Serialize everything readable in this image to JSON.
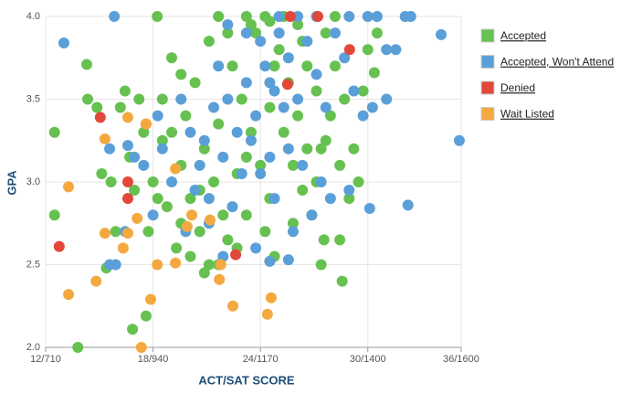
{
  "chart_data": {
    "type": "scatter",
    "x_label": "ACT/SAT SCORE",
    "y_label": "GPA",
    "xlim": [
      710,
      1600
    ],
    "xticks": [
      {
        "value": 710,
        "label": "12/710"
      },
      {
        "value": 940,
        "label": "18/940"
      },
      {
        "value": 1170,
        "label": "24/1170"
      },
      {
        "value": 1400,
        "label": "30/1400"
      },
      {
        "value": 1600,
        "label": "36/1600"
      }
    ],
    "ylim": [
      2,
      4
    ],
    "yticks": [
      {
        "value": 2,
        "label": "2.0"
      },
      2.5,
      {
        "value": 3,
        "label": "3.0"
      },
      3.5,
      {
        "value": 4,
        "label": "4.0"
      }
    ],
    "grid": true,
    "legend": "right",
    "series": [
      {
        "name": "Accepted",
        "color": "#66c150",
        "x": [
          960,
          980,
          1000,
          1020,
          1040,
          1060,
          990,
          1010,
          1030,
          1050,
          1070,
          1090,
          1110,
          1130,
          1150,
          1170,
          1190,
          1210,
          1230,
          1250,
          1270,
          1290,
          1310,
          1330,
          1350,
          1120,
          1140,
          1160,
          1180,
          1200,
          1220,
          1240,
          1260,
          1280,
          1300,
          1320,
          1340,
          1360,
          1370,
          1380,
          1390,
          1400,
          1420,
          940,
          930,
          950,
          920,
          910,
          900,
          890,
          880,
          870,
          860,
          850,
          840,
          830,
          820,
          800,
          1020,
          1050,
          1080,
          1100,
          1000,
          970,
          1150,
          1250,
          1330,
          1260,
          1220,
          1100,
          1060,
          1000,
          980,
          1180,
          1200,
          1240,
          1290,
          1310,
          1270,
          1140,
          1080,
          1040,
          960,
          1120,
          1190,
          1340,
          1300,
          779,
          729,
          729,
          798,
          896,
          925,
          1345,
          1306,
          1414,
          949,
          1080,
          1140,
          1190
        ],
        "values": [
          3.5,
          3.3,
          3.1,
          2.9,
          2.7,
          2.5,
          2.6,
          3.4,
          3.6,
          3.2,
          3.0,
          2.8,
          3.7,
          3.5,
          3.3,
          3.1,
          2.9,
          3.8,
          3.6,
          3.4,
          3.2,
          3.0,
          3.9,
          3.7,
          3.5,
          2.6,
          2.8,
          3.9,
          4.0,
          3.7,
          3.3,
          3.1,
          2.95,
          2.8,
          3.2,
          3.4,
          3.1,
          2.9,
          3.2,
          3.0,
          3.55,
          3.8,
          3.9,
          3.0,
          2.7,
          2.9,
          3.3,
          3.5,
          2.95,
          3.15,
          3.55,
          3.45,
          2.7,
          3.0,
          2.48,
          3.05,
          3.45,
          3.5,
          2.55,
          2.45,
          2.5,
          2.65,
          2.75,
          2.85,
          3.95,
          3.95,
          4.0,
          3.85,
          4.0,
          3.9,
          3.85,
          3.65,
          3.75,
          2.7,
          2.55,
          2.75,
          3.55,
          3.25,
          3.7,
          3.15,
          3.35,
          2.95,
          3.25,
          3.05,
          3.45,
          2.65,
          2.5,
          2.0,
          3.3,
          2.8,
          3.71,
          2.11,
          2.19,
          2.4,
          2.65,
          3.66,
          4.0,
          4.0,
          4.0,
          3.97
        ]
      },
      {
        "name": "Accepted, Won't Attend",
        "color": "#5b9fd8",
        "x": [
          1000,
          1020,
          1040,
          1060,
          1080,
          1100,
          1120,
          1140,
          1160,
          1180,
          1200,
          1220,
          1170,
          1190,
          1210,
          1230,
          1250,
          1270,
          1290,
          1310,
          1330,
          1350,
          1370,
          1390,
          1420,
          1440,
          1460,
          1480,
          1400,
          1360,
          1290,
          1250,
          1210,
          960,
          980,
          940,
          920,
          950,
          1010,
          1030,
          1050,
          1070,
          1090,
          1110,
          1130,
          1150,
          1170,
          1190,
          1230,
          1260,
          1280,
          1300,
          1320,
          1360,
          1240,
          1200,
          1160,
          1090,
          1060,
          1100,
          1140,
          1230,
          1190,
          880,
          900,
          860,
          749,
          857,
          1596,
          1557,
          1492,
          1486,
          1404,
          847,
          886,
          847,
          1440,
          1410
        ],
        "values": [
          3.5,
          3.3,
          3.1,
          2.9,
          3.7,
          3.5,
          3.3,
          3.6,
          3.4,
          3.7,
          3.55,
          3.45,
          3.85,
          3.6,
          3.9,
          3.75,
          3.5,
          3.85,
          3.65,
          3.45,
          3.9,
          3.75,
          3.55,
          3.4,
          4.0,
          3.8,
          3.8,
          4.0,
          4.0,
          4.0,
          4.0,
          4.0,
          4.0,
          3.2,
          3.0,
          2.8,
          3.1,
          3.4,
          2.7,
          2.95,
          3.25,
          3.45,
          3.15,
          2.85,
          3.05,
          3.25,
          3.05,
          3.15,
          3.2,
          3.1,
          2.8,
          3.0,
          2.9,
          2.95,
          2.7,
          2.9,
          2.6,
          2.55,
          2.75,
          3.95,
          3.9,
          2.53,
          2.52,
          2.7,
          3.15,
          2.5,
          3.84,
          4.0,
          3.25,
          3.89,
          4.0,
          2.86,
          2.84,
          2.5,
          3.22,
          3.2,
          3.5,
          3.45
        ]
      },
      {
        "name": "Denied",
        "color": "#e2483a",
        "x": [
          739,
          827,
          886,
          886,
          925,
          1117,
          1228,
          1234,
          1293,
          1361
        ],
        "values": [
          2.61,
          3.39,
          3.0,
          2.9,
          3.35,
          2.56,
          3.59,
          4.0,
          4.0,
          3.8
        ]
      },
      {
        "name": "Wait Listed",
        "color": "#f4a940",
        "x": [
          759,
          759,
          818,
          837,
          876,
          886,
          837,
          886,
          915,
          935,
          949,
          988,
          906,
          988,
          1023,
          1082,
          1111,
          1193,
          1185,
          1013,
          1085,
          1062,
          925
        ],
        "values": [
          2.97,
          2.32,
          2.4,
          2.69,
          2.6,
          2.69,
          3.26,
          3.39,
          2.0,
          2.29,
          2.5,
          2.51,
          2.78,
          3.08,
          2.8,
          2.41,
          2.25,
          2.3,
          2.2,
          2.73,
          2.5,
          2.77,
          3.35
        ]
      }
    ]
  }
}
